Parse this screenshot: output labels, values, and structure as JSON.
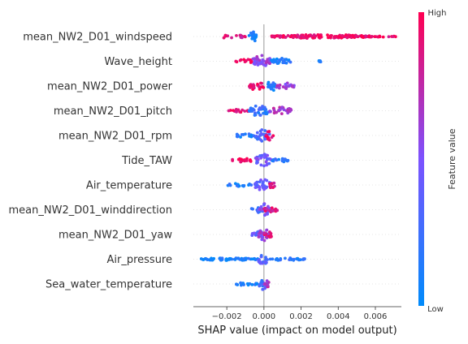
{
  "chart_data": {
    "type": "scatter",
    "subtype": "shap-beeswarm",
    "title": "",
    "xlabel": "SHAP value (impact on model output)",
    "xlim": [
      -0.0038,
      0.0074
    ],
    "xticks": [
      -0.002,
      0.0,
      0.002,
      0.004,
      0.006
    ],
    "xtick_labels": [
      "−0.002",
      "0.000",
      "0.002",
      "0.004",
      "0.006"
    ],
    "zero_line": true,
    "colorbar": {
      "label": "Feature value",
      "high_label": "High",
      "low_label": "Low",
      "low_color": "#008bfb",
      "mid_color": "#7c52ff",
      "high_color": "#ff0052"
    },
    "features": [
      {
        "name": "mean_NW2_D01_windspeed",
        "segments": [
          {
            "from": -0.0024,
            "to": -0.001,
            "color": 0.85,
            "density": 0.3,
            "spread": 0.25
          },
          {
            "from": -0.0008,
            "to": -0.0004,
            "color": 0.1,
            "density": 1.0,
            "spread": 0.55
          },
          {
            "from": 0.0004,
            "to": 0.0058,
            "color": 0.95,
            "density": 0.9,
            "spread": 0.18
          },
          {
            "from": 0.0058,
            "to": 0.0071,
            "color": 0.9,
            "density": 0.25,
            "spread": 0.05
          }
        ]
      },
      {
        "name": "Wave_height",
        "segments": [
          {
            "from": -0.0016,
            "to": -0.0006,
            "color": 0.95,
            "density": 0.35,
            "spread": 0.25
          },
          {
            "from": -0.0006,
            "to": 0.0004,
            "color": 0.6,
            "density": 1.0,
            "spread": 0.6
          },
          {
            "from": 0.0004,
            "to": 0.0015,
            "color": 0.12,
            "density": 0.7,
            "spread": 0.3
          },
          {
            "from": 0.0029,
            "to": 0.0031,
            "color": 0.08,
            "density": 0.2,
            "spread": 0.08
          }
        ]
      },
      {
        "name": "mean_NW2_D01_power",
        "segments": [
          {
            "from": -0.0008,
            "to": 0.0,
            "color": 0.92,
            "density": 0.8,
            "spread": 0.4
          },
          {
            "from": 0.0002,
            "to": 0.0006,
            "color": 0.12,
            "density": 1.0,
            "spread": 0.65
          },
          {
            "from": 0.0006,
            "to": 0.0017,
            "color": 0.62,
            "density": 0.55,
            "spread": 0.3
          }
        ]
      },
      {
        "name": "mean_NW2_D01_pitch",
        "segments": [
          {
            "from": -0.0019,
            "to": -0.0008,
            "color": 0.95,
            "density": 0.3,
            "spread": 0.15
          },
          {
            "from": -0.0008,
            "to": 0.0003,
            "color": 0.2,
            "density": 1.0,
            "spread": 0.55
          },
          {
            "from": 0.0003,
            "to": 0.0015,
            "color": 0.68,
            "density": 0.65,
            "spread": 0.35
          }
        ]
      },
      {
        "name": "mean_NW2_D01_rpm",
        "segments": [
          {
            "from": -0.0016,
            "to": -0.0005,
            "color": 0.12,
            "density": 0.35,
            "spread": 0.2
          },
          {
            "from": -0.0005,
            "to": 0.0003,
            "color": 0.3,
            "density": 1.0,
            "spread": 0.55
          },
          {
            "from": 0.0001,
            "to": 0.0005,
            "color": 0.93,
            "density": 0.6,
            "spread": 0.45
          }
        ]
      },
      {
        "name": "Tide_TAW",
        "segments": [
          {
            "from": -0.0017,
            "to": -0.0005,
            "color": 0.95,
            "density": 0.4,
            "spread": 0.2
          },
          {
            "from": -0.0005,
            "to": 0.0004,
            "color": 0.45,
            "density": 1.0,
            "spread": 0.6
          },
          {
            "from": 0.0004,
            "to": 0.0013,
            "color": 0.18,
            "density": 0.45,
            "spread": 0.2
          }
        ]
      },
      {
        "name": "Air_temperature",
        "segments": [
          {
            "from": -0.002,
            "to": -0.0006,
            "color": 0.12,
            "density": 0.3,
            "spread": 0.15
          },
          {
            "from": -0.0005,
            "to": 0.0004,
            "color": 0.4,
            "density": 1.0,
            "spread": 0.55
          },
          {
            "from": 0.0002,
            "to": 0.0006,
            "color": 0.88,
            "density": 0.5,
            "spread": 0.3
          }
        ]
      },
      {
        "name": "mean_NW2_D01_winddirection",
        "segments": [
          {
            "from": -0.0007,
            "to": 0.0,
            "color": 0.2,
            "density": 0.6,
            "spread": 0.3
          },
          {
            "from": -0.0003,
            "to": 0.0003,
            "color": 0.5,
            "density": 1.0,
            "spread": 0.6
          },
          {
            "from": 0.0,
            "to": 0.0008,
            "color": 0.85,
            "density": 0.6,
            "spread": 0.3
          }
        ]
      },
      {
        "name": "mean_NW2_D01_yaw",
        "segments": [
          {
            "from": -0.0007,
            "to": 0.0,
            "color": 0.4,
            "density": 0.6,
            "spread": 0.3
          },
          {
            "from": -0.0003,
            "to": 0.0003,
            "color": 0.6,
            "density": 1.0,
            "spread": 0.6
          },
          {
            "from": 0.0,
            "to": 0.0005,
            "color": 0.85,
            "density": 0.5,
            "spread": 0.3
          }
        ]
      },
      {
        "name": "Air_pressure",
        "segments": [
          {
            "from": -0.0034,
            "to": -0.0003,
            "color": 0.08,
            "density": 0.6,
            "spread": 0.12
          },
          {
            "from": -0.0003,
            "to": 0.0002,
            "color": 0.35,
            "density": 1.0,
            "spread": 0.55
          },
          {
            "from": 0.0002,
            "to": 0.0022,
            "color": 0.15,
            "density": 0.45,
            "spread": 0.12
          }
        ]
      },
      {
        "name": "Sea_water_temperature",
        "segments": [
          {
            "from": -0.0016,
            "to": -0.0003,
            "color": 0.12,
            "density": 0.35,
            "spread": 0.15
          },
          {
            "from": -0.0003,
            "to": 0.0002,
            "color": 0.25,
            "density": 1.0,
            "spread": 0.55
          },
          {
            "from": 0.0,
            "to": 0.0003,
            "color": 0.7,
            "density": 0.5,
            "spread": 0.35
          }
        ]
      }
    ]
  }
}
